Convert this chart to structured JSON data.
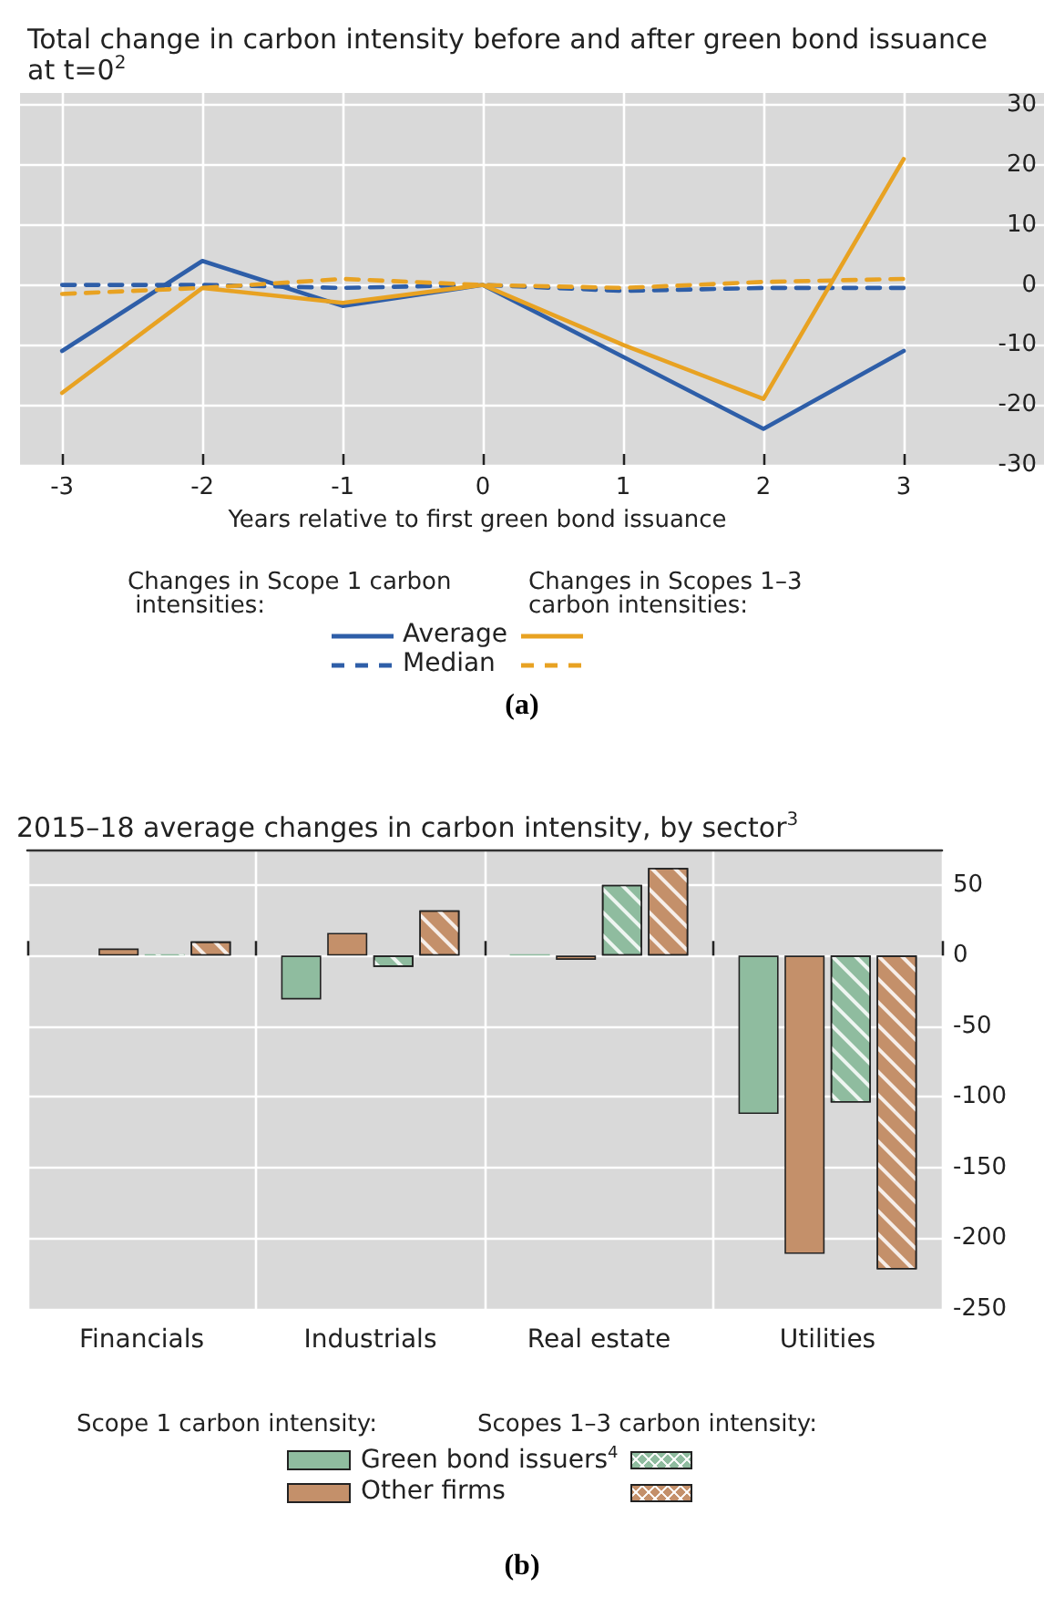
{
  "chart_data": [
    {
      "type": "line",
      "title": "Total change in carbon intensity before and after green bond issuance at t=0$^{2}$",
      "xlabel": "Years relative to first green bond issuance",
      "x": [
        -3,
        -2,
        -1,
        0,
        1,
        2,
        3
      ],
      "series": [
        {
          "name": "Average",
          "color": "#2e5ea8",
          "line_style": "solid",
          "values": [
            -11,
            4,
            -3.5,
            0,
            -12,
            -24,
            -11
          ]
        },
        {
          "name": "Median",
          "color": "#2e5ea8",
          "line_style": "dashed",
          "values": [
            0,
            0,
            -0.5,
            0,
            -1,
            -0.5,
            -0.5
          ]
        },
        {
          "color": "#e8a222",
          "line_style": "solid",
          "values": [
            -18,
            -0.5,
            -3,
            0,
            -10,
            -19,
            21
          ]
        },
        {
          "color": "#e8a222",
          "line_style": "dashed",
          "values": [
            -1.5,
            -0.5,
            1,
            0,
            -0.5,
            0.5,
            1
          ]
        }
      ],
      "xlim": [
        -3.3,
        4
      ],
      "xticks": [
        -3,
        -2,
        -1,
        0,
        1,
        2,
        3
      ],
      "ylim": [
        -30,
        32
      ],
      "yticks": [
        30,
        20,
        10,
        0,
        -10,
        -20,
        -30
      ],
      "grid": true,
      "marker": "none",
      "legend": "bottom",
      "annotations": [
        "Changes in Scope 1 carbon intensities:",
        "Changes in Scopes 1–3 carbon intensities:",
        "(a)"
      ]
    },
    {
      "type": "bar",
      "title": "2015–18 average changes in carbon intensity, by sector$^{3}$",
      "categories": [
        "Financials",
        "Industrials",
        "Real estate",
        "Utilities"
      ],
      "series": [
        {
          "name": "Green bond issuers$^{4}$",
          "color": "#8fbc9f",
          "values": [
            null,
            -31,
            1,
            -112
          ]
        },
        {
          "name": "Other firms",
          "color": "#c4906a",
          "values": [
            5,
            16,
            -3,
            -211
          ]
        },
        {
          "color": "#8fbc9f",
          "values": [
            1,
            -8,
            50,
            -104
          ]
        },
        {
          "color": "#c4906a",
          "values": [
            10,
            32,
            62,
            -222
          ]
        }
      ],
      "ylim": [
        -250,
        75
      ],
      "yticks": [
        50,
        0,
        -50,
        -100,
        -150,
        -200,
        -250
      ],
      "grid": true,
      "legend": "bottom",
      "annotations": [
        "Scope 1 carbon intensity:",
        "Scopes 1–3 carbon intensity:",
        "(b)"
      ]
    }
  ]
}
